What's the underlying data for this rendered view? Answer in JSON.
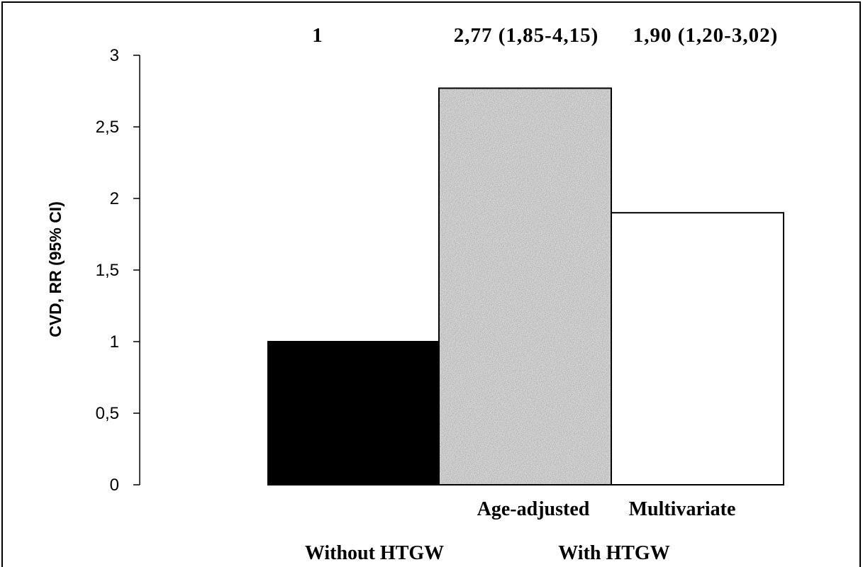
{
  "chart_data": {
    "type": "bar",
    "ylabel": "CVD, RR (95% CI)",
    "ylim": [
      0,
      3
    ],
    "yticks": [
      {
        "value": 0,
        "label": "0"
      },
      {
        "value": 0.5,
        "label": "0,5"
      },
      {
        "value": 1,
        "label": "1"
      },
      {
        "value": 1.5,
        "label": "1,5"
      },
      {
        "value": 2,
        "label": "2"
      },
      {
        "value": 2.5,
        "label": "2,5"
      },
      {
        "value": 3,
        "label": "3"
      }
    ],
    "bars": [
      {
        "value": 1,
        "value_label": "1",
        "color": "#000000"
      },
      {
        "category": "Age-adjusted",
        "value": 2.77,
        "value_label": "2,77 (1,85-4,15)",
        "color": "#a4a4a4"
      },
      {
        "category": "Multivariate",
        "value": 1.9,
        "value_label": "1,90 (1,20-3,02)",
        "color": "#ffffff"
      }
    ],
    "groups": [
      {
        "label": "Without HTGW",
        "bars": [
          0
        ]
      },
      {
        "label": "With HTGW",
        "bars": [
          1,
          2
        ]
      }
    ],
    "grid": false,
    "legend": "none"
  }
}
